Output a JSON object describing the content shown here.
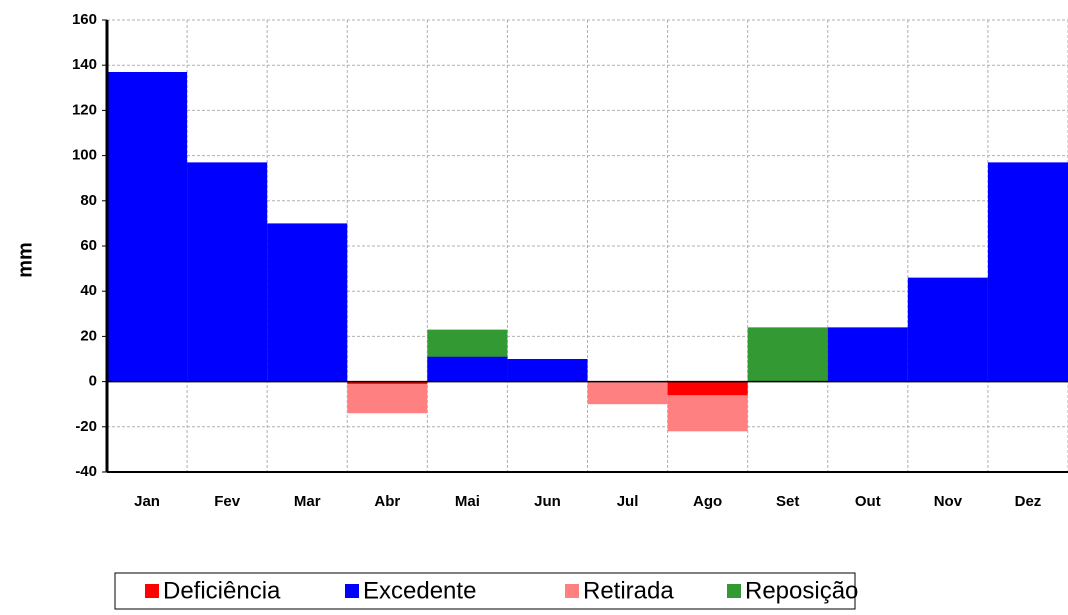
{
  "chart_data": {
    "type": "bar",
    "ylabel": "mm",
    "categories": [
      "Jan",
      "Fev",
      "Mar",
      "Abr",
      "Mai",
      "Jun",
      "Jul",
      "Ago",
      "Set",
      "Out",
      "Nov",
      "Dez"
    ],
    "series": [
      {
        "name": "Deficiência",
        "color": "#ff0000",
        "values": [
          0,
          0,
          0,
          -1,
          0,
          0,
          0,
          -6,
          0,
          0,
          0,
          0
        ]
      },
      {
        "name": "Excedente",
        "color": "#0000ff",
        "values": [
          137,
          97,
          70,
          0,
          11,
          10,
          0,
          0,
          0,
          24,
          46,
          97
        ]
      },
      {
        "name": "Retirada",
        "color": "#ff8080",
        "values": [
          0,
          0,
          0,
          -14,
          0,
          0,
          -10,
          -22,
          0,
          0,
          0,
          0
        ]
      },
      {
        "name": "Reposição",
        "color": "#339933",
        "values": [
          0,
          0,
          0,
          0,
          23,
          0,
          0,
          0,
          24,
          0,
          0,
          0
        ]
      }
    ],
    "ylim": [
      -40,
      160
    ],
    "yticks": [
      -40,
      -20,
      0,
      20,
      40,
      60,
      80,
      100,
      120,
      140,
      160
    ],
    "grid": true,
    "legend": "bottom"
  }
}
